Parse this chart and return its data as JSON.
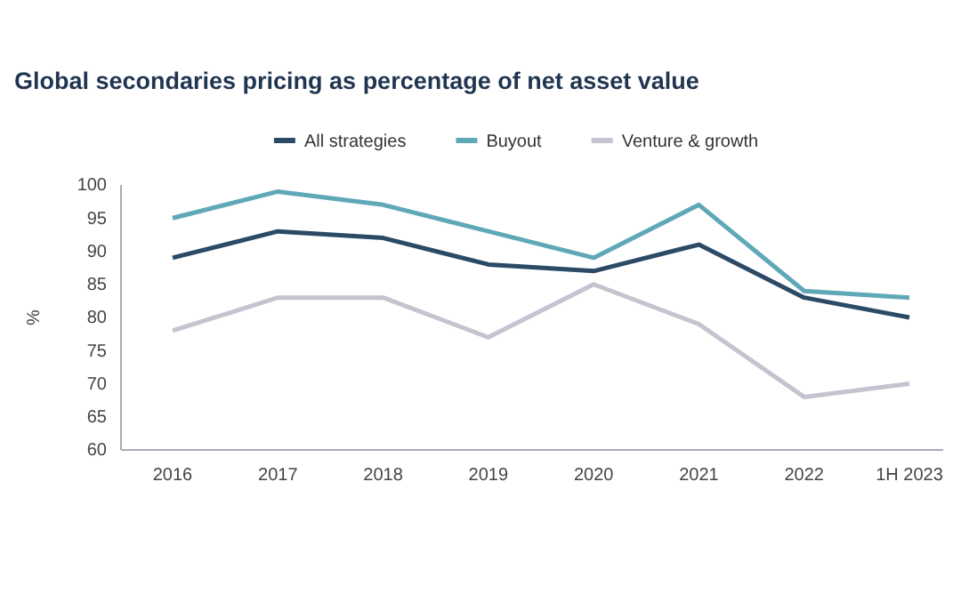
{
  "chart_data": {
    "type": "line",
    "title": "Global secondaries pricing as percentage of net asset value",
    "ylabel": "%",
    "categories": [
      "2016",
      "2017",
      "2018",
      "2019",
      "2020",
      "2021",
      "2022",
      "1H 2023"
    ],
    "series": [
      {
        "name": "All strategies",
        "color": "#2b4a66",
        "values": [
          89,
          93,
          92,
          88,
          87,
          91,
          83,
          80
        ]
      },
      {
        "name": "Buyout",
        "color": "#5fa8b8",
        "values": [
          95,
          99,
          97,
          93,
          89,
          97,
          84,
          83
        ]
      },
      {
        "name": "Venture & growth",
        "color": "#c4c4d0",
        "values": [
          78,
          83,
          83,
          77,
          85,
          79,
          68,
          70
        ]
      }
    ],
    "ylim": [
      60,
      100
    ],
    "yticks": [
      60,
      65,
      70,
      75,
      80,
      85,
      90,
      95,
      100
    ],
    "legend": "top",
    "grid": false,
    "marker": "none",
    "line_style": "solid"
  }
}
